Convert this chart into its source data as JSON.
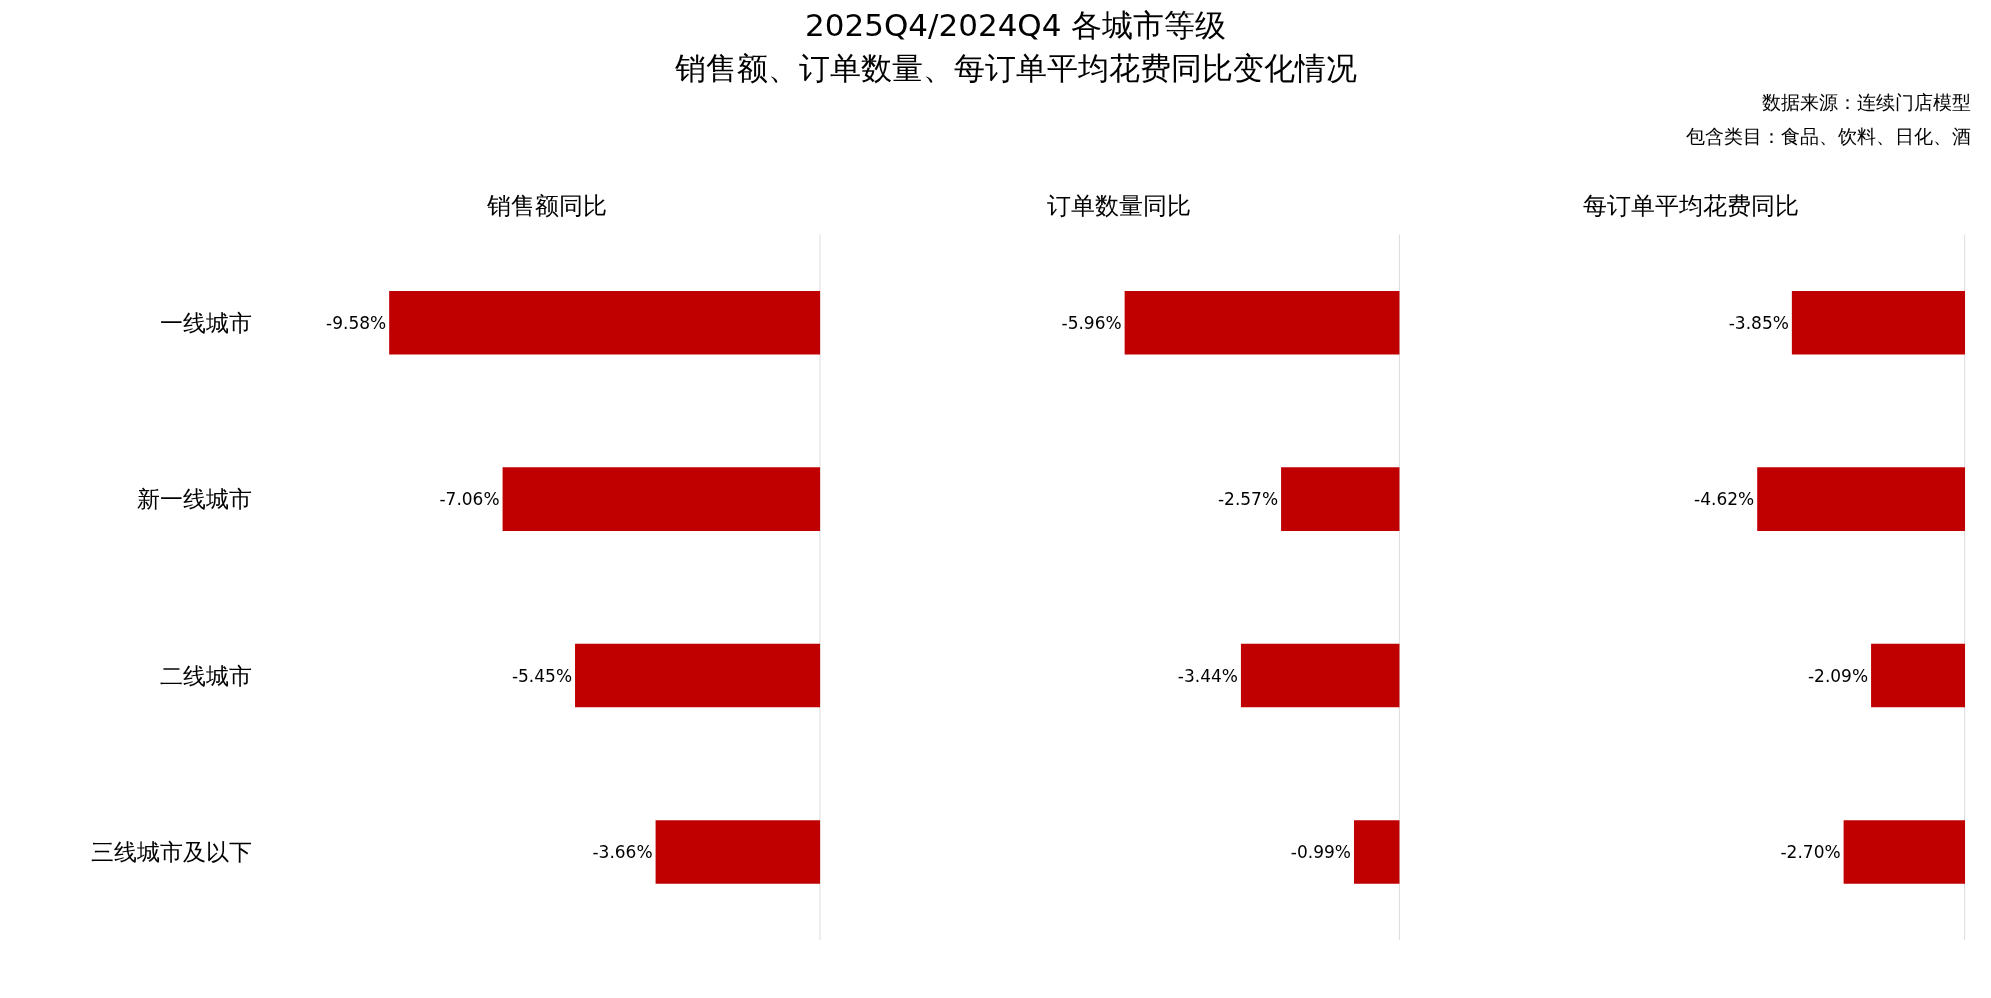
{
  "chart_data": [
    {
      "type": "bar",
      "orientation": "horizontal",
      "xlabel": "销售额同比",
      "categories": [
        "一线城市",
        "新一线城市",
        "二线城市",
        "三线城市及以下"
      ],
      "values": [
        -9.58,
        -7.06,
        -5.45,
        -3.66
      ],
      "value_labels": [
        "-9.58%",
        "-7.06%",
        "-5.45%",
        "-3.66%"
      ],
      "color": "#c00000",
      "tick_labels": "y"
    },
    {
      "type": "bar",
      "orientation": "horizontal",
      "title": "2025Q4/2024Q4 各城市等级",
      "subtitle": "销售额、订单数量、每订单平均花费同比变化情况",
      "xlabel": "订单数量同比",
      "categories": [
        null,
        null,
        null,
        null
      ],
      "values": [
        -5.96,
        -2.57,
        -3.44,
        -0.99
      ],
      "value_labels": [
        "-5.96%",
        "-2.57%",
        "-3.44%",
        "-0.99%"
      ],
      "color": "#c00000",
      "tick_labels": false
    },
    {
      "type": "bar",
      "orientation": "horizontal",
      "xlabel": "每订单平均花费同比",
      "annotations": [
        "数据来源：连续门店模型",
        "包含类目：食品、饮料、日化、酒"
      ],
      "categories": [
        null,
        null,
        null,
        null
      ],
      "values": [
        -3.85,
        -4.62,
        -2.09,
        -2.7
      ],
      "value_labels": [
        "-3.85%",
        "-4.62%",
        "-2.09%",
        "-2.70%"
      ],
      "color": "#c00000",
      "tick_labels": false
    }
  ]
}
